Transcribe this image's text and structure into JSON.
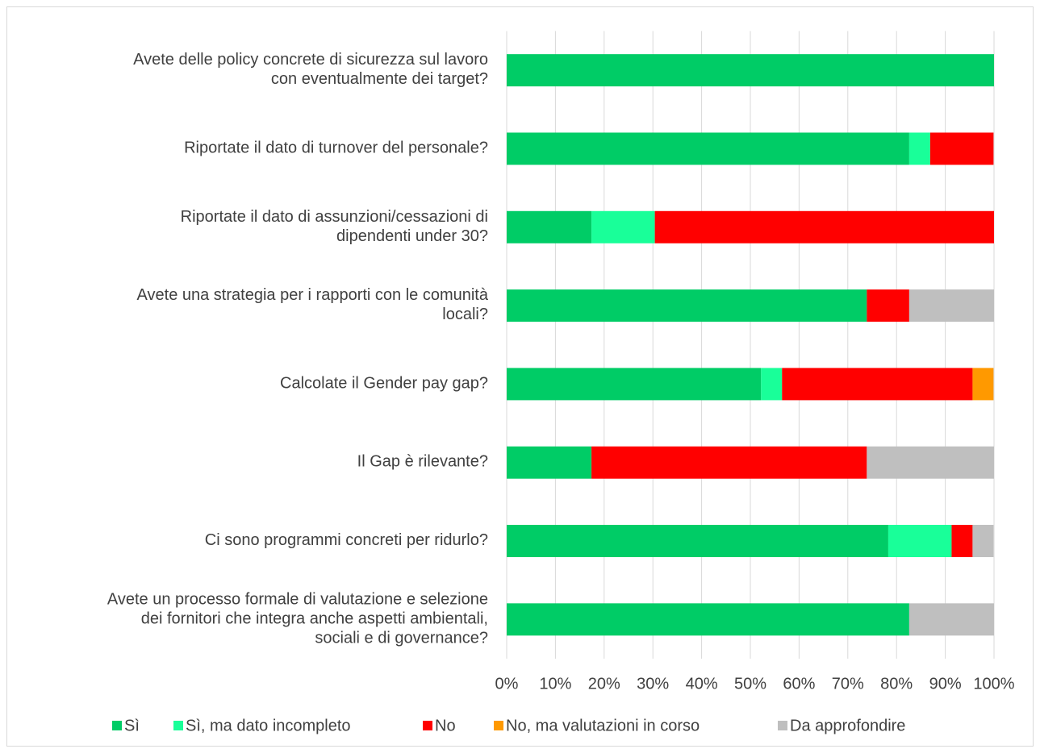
{
  "chart_data": {
    "type": "stacked_barh",
    "categories": [
      [
        "Avete delle policy concrete di sicurezza sul lavoro",
        "con eventualmente dei target?"
      ],
      [
        "Riportate il dato di turnover del personale?"
      ],
      [
        "Riportate il dato di assunzioni/cessazioni di",
        "dipendenti under 30?"
      ],
      [
        "Avete una strategia per i rapporti con le comunità",
        "locali?"
      ],
      [
        "Calcolate il Gender pay gap?"
      ],
      [
        "Il Gap è rilevante?"
      ],
      [
        "Ci sono programmi concreti per ridurlo?"
      ],
      [
        "Avete un processo formale di valutazione e selezione",
        "dei fornitori che integra anche aspetti ambientali,",
        "sociali e di governance?"
      ]
    ],
    "series": [
      {
        "name": "Sì",
        "color": "#00cc66",
        "values": [
          100,
          82.6,
          17.4,
          73.9,
          52.2,
          17.4,
          78.3,
          82.6
        ]
      },
      {
        "name": "Sì, ma dato incompleto",
        "color": "#19ff99",
        "values": [
          0,
          4.3,
          13.0,
          0,
          4.3,
          0,
          13.0,
          0
        ]
      },
      {
        "name": "No",
        "color": "#ff0000",
        "values": [
          0,
          13.0,
          69.6,
          8.7,
          39.1,
          56.5,
          4.3,
          0
        ]
      },
      {
        "name": "No, ma valutazioni in corso",
        "color": "#ff9900",
        "values": [
          0,
          0,
          0,
          0,
          4.3,
          0,
          0,
          0
        ]
      },
      {
        "name": "Da approfondire",
        "color": "#bfbfbf",
        "values": [
          0,
          0,
          0,
          17.4,
          0,
          26.1,
          4.3,
          17.4
        ]
      }
    ],
    "xlim": [
      0,
      100
    ],
    "xticks": [
      {
        "value": 0,
        "label": "0%"
      },
      {
        "value": 10,
        "label": "10%"
      },
      {
        "value": 20,
        "label": "20%"
      },
      {
        "value": 30,
        "label": "30%"
      },
      {
        "value": 40,
        "label": "40%"
      },
      {
        "value": 50,
        "label": "50%"
      },
      {
        "value": 60,
        "label": "60%"
      },
      {
        "value": 70,
        "label": "70%"
      },
      {
        "value": 80,
        "label": "80%"
      },
      {
        "value": 90,
        "label": "90%"
      },
      {
        "value": 100,
        "label": "100%"
      }
    ],
    "grid": true,
    "legend": "bottom"
  }
}
